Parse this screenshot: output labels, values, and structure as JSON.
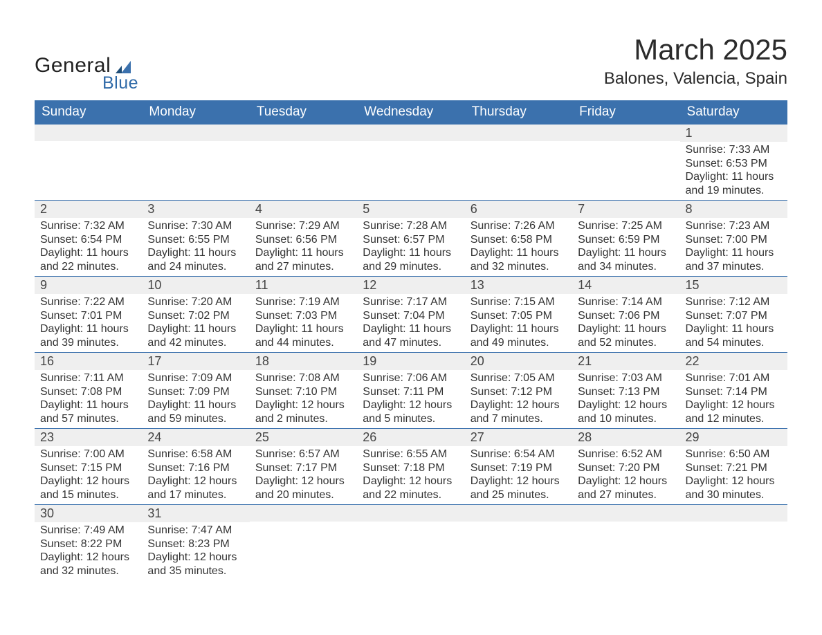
{
  "logo": {
    "word1": "General",
    "word2": "Blue"
  },
  "header": {
    "month_title": "March 2025",
    "location": "Balones, Valencia, Spain"
  },
  "calendar": {
    "day_labels": [
      "Sunday",
      "Monday",
      "Tuesday",
      "Wednesday",
      "Thursday",
      "Friday",
      "Saturday"
    ],
    "header_bg": "#3b71ad",
    "header_fg": "#ffffff",
    "row_divider_color": "#3b71ad",
    "daynum_bg": "#efefef",
    "text_color": "#333333",
    "weeks": [
      [
        {
          "empty": true
        },
        {
          "empty": true
        },
        {
          "empty": true
        },
        {
          "empty": true
        },
        {
          "empty": true
        },
        {
          "empty": true
        },
        {
          "n": "1",
          "sunrise": "Sunrise: 7:33 AM",
          "sunset": "Sunset: 6:53 PM",
          "daylight": "Daylight: 11 hours and 19 minutes."
        }
      ],
      [
        {
          "n": "2",
          "sunrise": "Sunrise: 7:32 AM",
          "sunset": "Sunset: 6:54 PM",
          "daylight": "Daylight: 11 hours and 22 minutes."
        },
        {
          "n": "3",
          "sunrise": "Sunrise: 7:30 AM",
          "sunset": "Sunset: 6:55 PM",
          "daylight": "Daylight: 11 hours and 24 minutes."
        },
        {
          "n": "4",
          "sunrise": "Sunrise: 7:29 AM",
          "sunset": "Sunset: 6:56 PM",
          "daylight": "Daylight: 11 hours and 27 minutes."
        },
        {
          "n": "5",
          "sunrise": "Sunrise: 7:28 AM",
          "sunset": "Sunset: 6:57 PM",
          "daylight": "Daylight: 11 hours and 29 minutes."
        },
        {
          "n": "6",
          "sunrise": "Sunrise: 7:26 AM",
          "sunset": "Sunset: 6:58 PM",
          "daylight": "Daylight: 11 hours and 32 minutes."
        },
        {
          "n": "7",
          "sunrise": "Sunrise: 7:25 AM",
          "sunset": "Sunset: 6:59 PM",
          "daylight": "Daylight: 11 hours and 34 minutes."
        },
        {
          "n": "8",
          "sunrise": "Sunrise: 7:23 AM",
          "sunset": "Sunset: 7:00 PM",
          "daylight": "Daylight: 11 hours and 37 minutes."
        }
      ],
      [
        {
          "n": "9",
          "sunrise": "Sunrise: 7:22 AM",
          "sunset": "Sunset: 7:01 PM",
          "daylight": "Daylight: 11 hours and 39 minutes."
        },
        {
          "n": "10",
          "sunrise": "Sunrise: 7:20 AM",
          "sunset": "Sunset: 7:02 PM",
          "daylight": "Daylight: 11 hours and 42 minutes."
        },
        {
          "n": "11",
          "sunrise": "Sunrise: 7:19 AM",
          "sunset": "Sunset: 7:03 PM",
          "daylight": "Daylight: 11 hours and 44 minutes."
        },
        {
          "n": "12",
          "sunrise": "Sunrise: 7:17 AM",
          "sunset": "Sunset: 7:04 PM",
          "daylight": "Daylight: 11 hours and 47 minutes."
        },
        {
          "n": "13",
          "sunrise": "Sunrise: 7:15 AM",
          "sunset": "Sunset: 7:05 PM",
          "daylight": "Daylight: 11 hours and 49 minutes."
        },
        {
          "n": "14",
          "sunrise": "Sunrise: 7:14 AM",
          "sunset": "Sunset: 7:06 PM",
          "daylight": "Daylight: 11 hours and 52 minutes."
        },
        {
          "n": "15",
          "sunrise": "Sunrise: 7:12 AM",
          "sunset": "Sunset: 7:07 PM",
          "daylight": "Daylight: 11 hours and 54 minutes."
        }
      ],
      [
        {
          "n": "16",
          "sunrise": "Sunrise: 7:11 AM",
          "sunset": "Sunset: 7:08 PM",
          "daylight": "Daylight: 11 hours and 57 minutes."
        },
        {
          "n": "17",
          "sunrise": "Sunrise: 7:09 AM",
          "sunset": "Sunset: 7:09 PM",
          "daylight": "Daylight: 11 hours and 59 minutes."
        },
        {
          "n": "18",
          "sunrise": "Sunrise: 7:08 AM",
          "sunset": "Sunset: 7:10 PM",
          "daylight": "Daylight: 12 hours and 2 minutes."
        },
        {
          "n": "19",
          "sunrise": "Sunrise: 7:06 AM",
          "sunset": "Sunset: 7:11 PM",
          "daylight": "Daylight: 12 hours and 5 minutes."
        },
        {
          "n": "20",
          "sunrise": "Sunrise: 7:05 AM",
          "sunset": "Sunset: 7:12 PM",
          "daylight": "Daylight: 12 hours and 7 minutes."
        },
        {
          "n": "21",
          "sunrise": "Sunrise: 7:03 AM",
          "sunset": "Sunset: 7:13 PM",
          "daylight": "Daylight: 12 hours and 10 minutes."
        },
        {
          "n": "22",
          "sunrise": "Sunrise: 7:01 AM",
          "sunset": "Sunset: 7:14 PM",
          "daylight": "Daylight: 12 hours and 12 minutes."
        }
      ],
      [
        {
          "n": "23",
          "sunrise": "Sunrise: 7:00 AM",
          "sunset": "Sunset: 7:15 PM",
          "daylight": "Daylight: 12 hours and 15 minutes."
        },
        {
          "n": "24",
          "sunrise": "Sunrise: 6:58 AM",
          "sunset": "Sunset: 7:16 PM",
          "daylight": "Daylight: 12 hours and 17 minutes."
        },
        {
          "n": "25",
          "sunrise": "Sunrise: 6:57 AM",
          "sunset": "Sunset: 7:17 PM",
          "daylight": "Daylight: 12 hours and 20 minutes."
        },
        {
          "n": "26",
          "sunrise": "Sunrise: 6:55 AM",
          "sunset": "Sunset: 7:18 PM",
          "daylight": "Daylight: 12 hours and 22 minutes."
        },
        {
          "n": "27",
          "sunrise": "Sunrise: 6:54 AM",
          "sunset": "Sunset: 7:19 PM",
          "daylight": "Daylight: 12 hours and 25 minutes."
        },
        {
          "n": "28",
          "sunrise": "Sunrise: 6:52 AM",
          "sunset": "Sunset: 7:20 PM",
          "daylight": "Daylight: 12 hours and 27 minutes."
        },
        {
          "n": "29",
          "sunrise": "Sunrise: 6:50 AM",
          "sunset": "Sunset: 7:21 PM",
          "daylight": "Daylight: 12 hours and 30 minutes."
        }
      ],
      [
        {
          "n": "30",
          "sunrise": "Sunrise: 7:49 AM",
          "sunset": "Sunset: 8:22 PM",
          "daylight": "Daylight: 12 hours and 32 minutes."
        },
        {
          "n": "31",
          "sunrise": "Sunrise: 7:47 AM",
          "sunset": "Sunset: 8:23 PM",
          "daylight": "Daylight: 12 hours and 35 minutes."
        },
        {
          "empty": true
        },
        {
          "empty": true
        },
        {
          "empty": true
        },
        {
          "empty": true
        },
        {
          "empty": true
        }
      ]
    ]
  }
}
